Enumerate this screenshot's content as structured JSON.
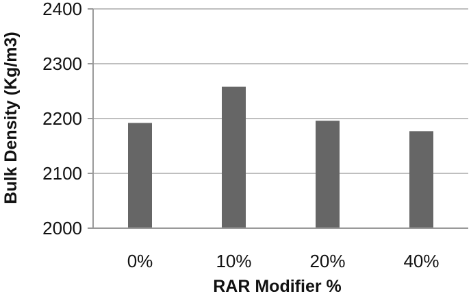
{
  "chart_data": {
    "type": "bar",
    "title": "",
    "xlabel": "RAR Modifier %",
    "ylabel": "Bulk Density (Kg/m3)",
    "categories": [
      "0%",
      "10%",
      "20%",
      "40%"
    ],
    "values": [
      2192,
      2258,
      2196,
      2177
    ],
    "ylim": [
      2000,
      2400
    ],
    "yticks": [
      2000,
      2100,
      2200,
      2300,
      2400
    ],
    "grid": true,
    "legend": "none",
    "bar_color": "#666666",
    "grid_color": "#bfbfbf"
  }
}
